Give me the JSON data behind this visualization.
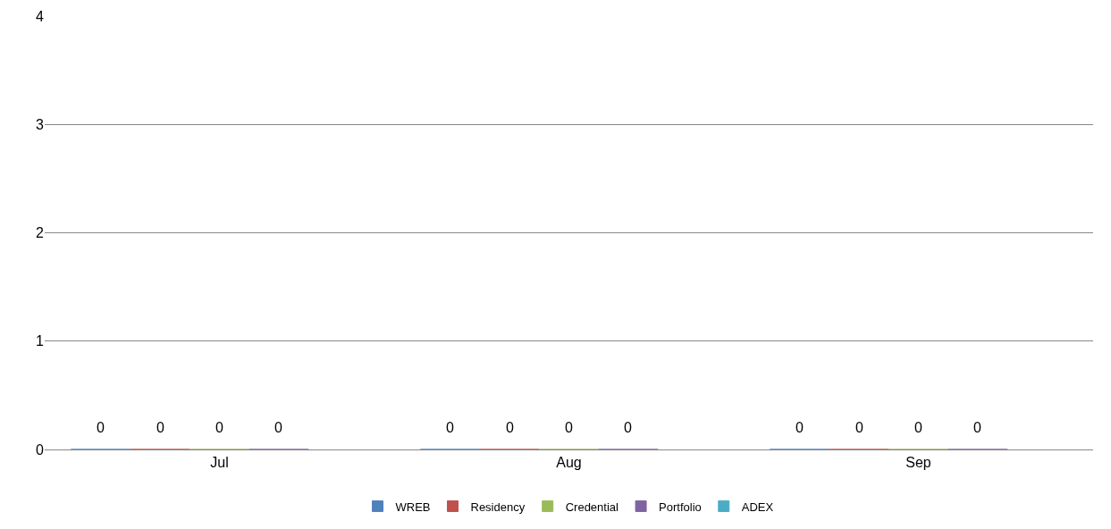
{
  "chart_data": {
    "type": "bar",
    "categories": [
      "Jul",
      "Aug",
      "Sep"
    ],
    "series": [
      {
        "name": "WREB",
        "color": "#4f81bd",
        "values": [
          0,
          0,
          0
        ]
      },
      {
        "name": "Residency",
        "color": "#c0504d",
        "values": [
          0,
          0,
          0
        ]
      },
      {
        "name": "Credential",
        "color": "#9bbb59",
        "values": [
          0,
          0,
          0
        ]
      },
      {
        "name": "Portfolio",
        "color": "#8064a2",
        "values": [
          0,
          0,
          0
        ]
      },
      {
        "name": "ADEX",
        "color": "#4bacc6",
        "values": [
          null,
          null,
          null
        ]
      }
    ],
    "ylim": [
      0,
      4
    ],
    "yticks": [
      0,
      1,
      2,
      3,
      4
    ],
    "grid": "y",
    "legend": "bottom",
    "data_labels": true
  }
}
